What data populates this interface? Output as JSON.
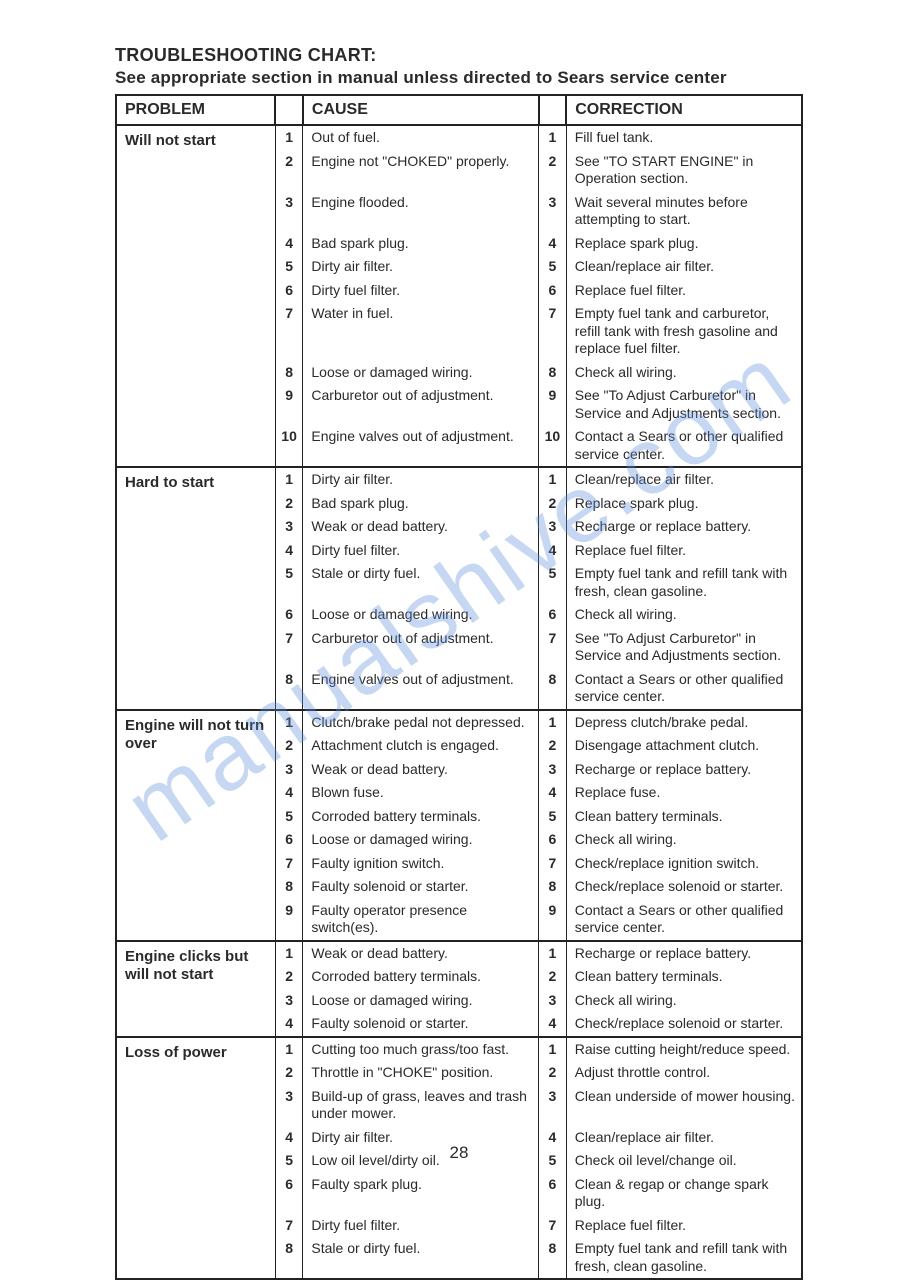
{
  "title": "TROUBLESHOOTING CHART:",
  "subtitle": "See appropriate section in manual unless directed to Sears service center",
  "headers": {
    "problem": "PROBLEM",
    "cause": "CAUSE",
    "correction": "CORRECTION"
  },
  "watermark": "manualshive.com",
  "page_number": "28",
  "sections": [
    {
      "problem": "Will not start",
      "rows": [
        {
          "n": "1",
          "cause": "Out of fuel.",
          "corr": "Fill fuel tank."
        },
        {
          "n": "2",
          "cause": "Engine not \"CHOKED\" properly.",
          "corr": "See \"TO START ENGINE\" in Operation section."
        },
        {
          "n": "3",
          "cause": "Engine flooded.",
          "corr": "Wait several minutes before attempting to start."
        },
        {
          "n": "4",
          "cause": "Bad spark plug.",
          "corr": "Replace spark plug."
        },
        {
          "n": "5",
          "cause": "Dirty air filter.",
          "corr": "Clean/replace air filter."
        },
        {
          "n": "6",
          "cause": "Dirty fuel filter.",
          "corr": "Replace fuel filter."
        },
        {
          "n": "7",
          "cause": "Water in fuel.",
          "corr": "Empty fuel tank and carburetor, refill tank with fresh gasoline and replace fuel filter."
        },
        {
          "n": "8",
          "cause": "Loose or damaged wiring.",
          "corr": "Check all wiring."
        },
        {
          "n": "9",
          "cause": "Carburetor out of adjustment.",
          "corr": "See \"To Adjust Carburetor\" in Service and Adjustments section."
        },
        {
          "n": "10",
          "cause": "Engine valves out of adjustment.",
          "corr": "Contact a Sears or other qualified service center."
        }
      ]
    },
    {
      "problem": "Hard to start",
      "rows": [
        {
          "n": "1",
          "cause": "Dirty air filter.",
          "corr": "Clean/replace air filter."
        },
        {
          "n": "2",
          "cause": "Bad spark plug.",
          "corr": "Replace spark plug."
        },
        {
          "n": "3",
          "cause": "Weak or dead battery.",
          "corr": "Recharge or replace battery."
        },
        {
          "n": "4",
          "cause": "Dirty fuel filter.",
          "corr": "Replace fuel filter."
        },
        {
          "n": "5",
          "cause": "Stale or dirty fuel.",
          "corr": "Empty fuel tank and refill tank with fresh, clean gasoline."
        },
        {
          "n": "6",
          "cause": "Loose or damaged wiring.",
          "corr": "Check all wiring."
        },
        {
          "n": "7",
          "cause": "Carburetor out of adjustment.",
          "corr": "See \"To Adjust Carburetor\" in Service and Adjustments section."
        },
        {
          "n": "8",
          "cause": "Engine valves out of adjustment.",
          "corr": "Contact a Sears or other qualified service center."
        }
      ]
    },
    {
      "problem": "Engine will not turn over",
      "rows": [
        {
          "n": "1",
          "cause": "Clutch/brake pedal not depressed.",
          "corr": "Depress clutch/brake pedal."
        },
        {
          "n": "2",
          "cause": "Attachment clutch is engaged.",
          "corr": "Disengage attachment clutch."
        },
        {
          "n": "3",
          "cause": "Weak or dead battery.",
          "corr": "Recharge or replace battery."
        },
        {
          "n": "4",
          "cause": "Blown fuse.",
          "corr": "Replace fuse."
        },
        {
          "n": "5",
          "cause": "Corroded battery terminals.",
          "corr": "Clean battery terminals."
        },
        {
          "n": "6",
          "cause": "Loose or damaged wiring.",
          "corr": "Check all wiring."
        },
        {
          "n": "7",
          "cause": "Faulty ignition switch.",
          "corr": "Check/replace ignition switch."
        },
        {
          "n": "8",
          "cause": "Faulty solenoid or starter.",
          "corr": "Check/replace solenoid or starter."
        },
        {
          "n": "9",
          "cause": "Faulty operator presence switch(es).",
          "corr": "Contact a Sears or other qualified service center."
        }
      ]
    },
    {
      "problem": "Engine clicks but will not start",
      "rows": [
        {
          "n": "1",
          "cause": "Weak or dead battery.",
          "corr": "Recharge or replace battery."
        },
        {
          "n": "2",
          "cause": "Corroded battery terminals.",
          "corr": "Clean battery terminals."
        },
        {
          "n": "3",
          "cause": "Loose or damaged wiring.",
          "corr": "Check all wiring."
        },
        {
          "n": "4",
          "cause": "Faulty solenoid or starter.",
          "corr": "Check/replace solenoid or starter."
        }
      ]
    },
    {
      "problem": "Loss of power",
      "rows": [
        {
          "n": "1",
          "cause": "Cutting too much grass/too fast.",
          "corr": "Raise cutting height/reduce speed."
        },
        {
          "n": "2",
          "cause": "Throttle in \"CHOKE\" position.",
          "corr": "Adjust throttle control."
        },
        {
          "n": "3",
          "cause": "Build-up of grass, leaves and trash under mower.",
          "corr": "Clean underside of mower housing."
        },
        {
          "n": "4",
          "cause": "Dirty air filter.",
          "corr": "Clean/replace air filter."
        },
        {
          "n": "5",
          "cause": "Low oil level/dirty oil.",
          "corr": "Check oil level/change oil."
        },
        {
          "n": "6",
          "cause": "Faulty spark plug.",
          "corr": "Clean & regap or change spark plug."
        },
        {
          "n": "7",
          "cause": "Dirty fuel filter.",
          "corr": "Replace fuel filter."
        },
        {
          "n": "8",
          "cause": "Stale or dirty fuel.",
          "corr": "Empty fuel tank and refill tank with fresh, clean gasoline."
        }
      ]
    }
  ]
}
